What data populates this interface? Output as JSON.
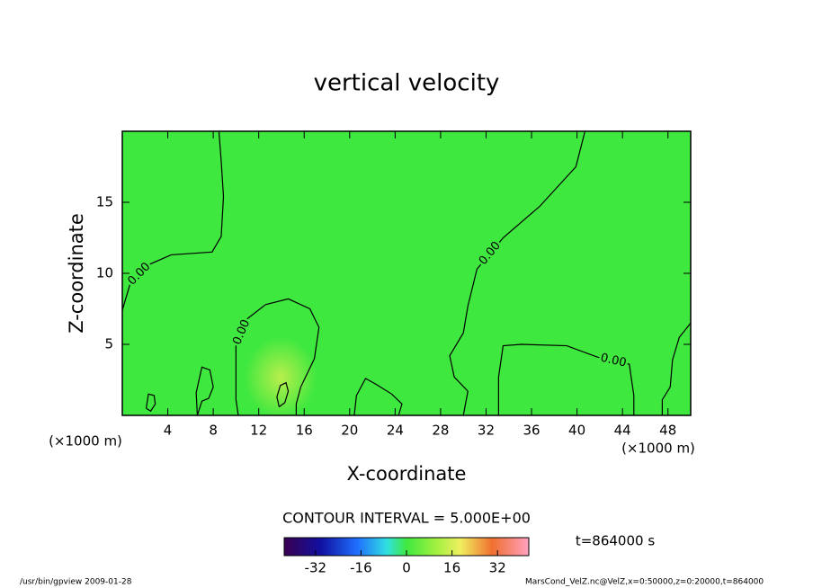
{
  "chart_data": {
    "type": "contour",
    "title": "vertical velocity",
    "x_label": "X-coordinate",
    "y_label": "Z-coordinate",
    "x_unit_label": "(×1000 m)",
    "xlim": [
      0,
      50
    ],
    "ylim": [
      0,
      20
    ],
    "xticks": [
      4,
      8,
      12,
      16,
      20,
      24,
      28,
      32,
      36,
      40,
      44,
      48
    ],
    "yticks": [
      5,
      10,
      15
    ],
    "fill_color": "#3fe83f",
    "line_color": "#000000",
    "contours": [
      {
        "level": {
          "value": 0,
          "label": "0.00"
        },
        "x": [
          0,
          0.7,
          2.3,
          4.3,
          7.9,
          8.7,
          8.9,
          8.7,
          8.5
        ],
        "z": [
          7.4,
          9.3,
          10.6,
          11.3,
          11.5,
          12.6,
          15.4,
          17.9,
          20
        ]
      },
      {
        "level": {
          "value": 0,
          "label": "0.00"
        },
        "x": [
          10.2,
          10,
          10,
          11,
          12.6,
          14.6,
          16.5,
          17.3,
          16.9,
          15.7,
          15.3,
          15.3
        ],
        "z": [
          0,
          1.1,
          4.9,
          6.8,
          7.8,
          8.2,
          7.5,
          6.2,
          4,
          2,
          0.8,
          0
        ]
      },
      {
        "level": {
          "value": 0,
          "label": "0.00"
        },
        "x": [
          40.7,
          39.9,
          36.7,
          33.5,
          31.2,
          30.4,
          30,
          28.8,
          29.2,
          30.4,
          30
        ],
        "z": [
          20,
          17.5,
          14.7,
          12.5,
          10.3,
          7.7,
          5.8,
          4.2,
          2.7,
          1.7,
          0
        ]
      },
      {
        "level": {
          "value": 0,
          "label": "0.00"
        },
        "x": [
          33.1,
          33.1,
          33.5,
          35.1,
          39.1,
          41.8,
          44.6,
          45,
          45
        ],
        "z": [
          0,
          2.7,
          4.9,
          5,
          4.9,
          4.1,
          3.6,
          1.4,
          0
        ]
      },
      {
        "level": 0,
        "x": [
          50,
          49,
          48.4,
          48.2,
          47.5,
          47.5
        ],
        "z": [
          6.5,
          5.5,
          3.9,
          2,
          1.1,
          0
        ]
      },
      {
        "level": 0,
        "x": [
          13.8,
          14.3,
          14.6,
          14.4,
          13.9,
          13.6,
          13.8
        ],
        "z": [
          0.6,
          0.9,
          1.7,
          2.3,
          2.1,
          1.3,
          0.6
        ]
      },
      {
        "level": 0,
        "x": [
          6.6,
          6.5,
          7.0,
          7.7,
          8.0,
          7.6,
          7.0,
          6.6
        ],
        "z": [
          0,
          1.6,
          3.4,
          3.2,
          2.0,
          1.2,
          1.0,
          0
        ]
      },
      {
        "level": 0,
        "x": [
          20.4,
          20.6,
          21.4,
          22.3,
          23.7,
          24.6,
          24.3
        ],
        "z": [
          0,
          1.4,
          2.6,
          2.2,
          1.5,
          0.8,
          0
        ]
      },
      {
        "level": 0,
        "x": [
          2.1,
          2.3,
          2.8,
          2.9,
          2.5,
          2.1
        ],
        "z": [
          0.5,
          1.5,
          1.4,
          0.8,
          0.3,
          0.5
        ]
      }
    ],
    "contour_interval": "CONTOUR INTERVAL = 5.000E+00",
    "colorbar_lim": [
      -43,
      43
    ],
    "colorbar_ticks": [
      -32,
      -16,
      0,
      16,
      32
    ],
    "time_label": "t=864000 s",
    "footer_left": "/usr/bin/gpview   2009-01-28",
    "footer_right": "MarsCond_VelZ.nc@VelZ,x=0:50000,z=0:20000,t=864000"
  }
}
